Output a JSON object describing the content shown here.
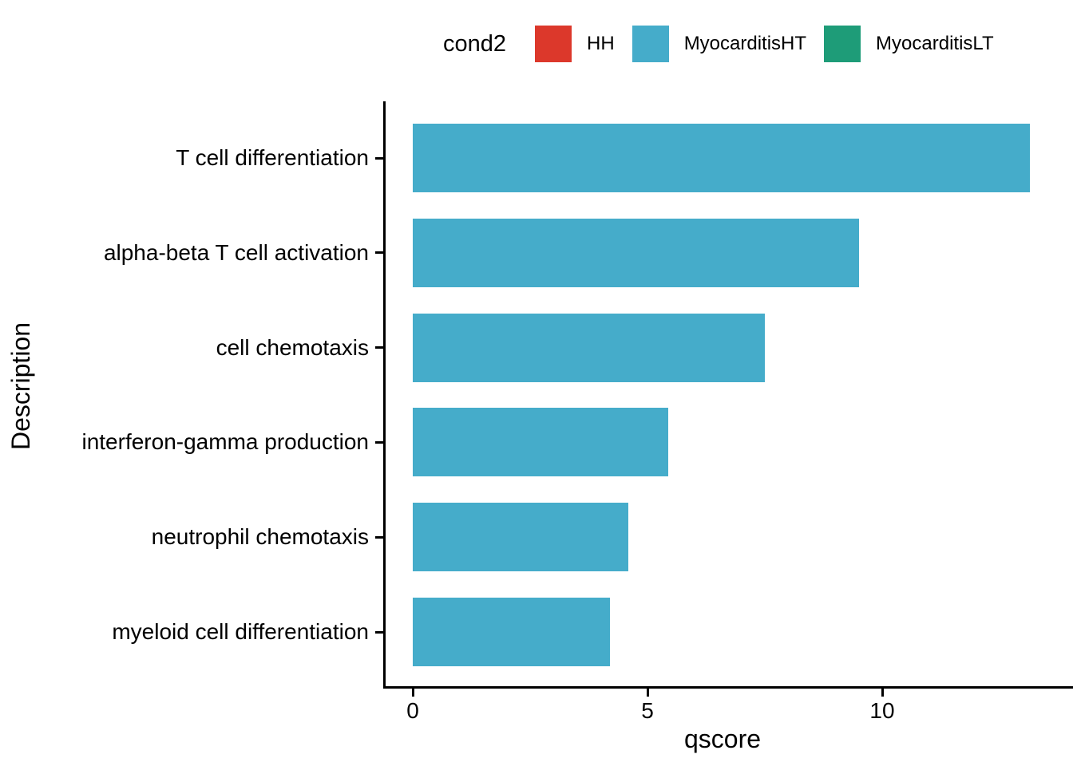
{
  "chart_data": {
    "type": "bar",
    "orientation": "horizontal",
    "title": "",
    "xlabel": "qscore",
    "ylabel": "Description",
    "categories": [
      "T cell differentiation",
      "alpha-beta T cell activation",
      "cell chemotaxis",
      "interferon-gamma production",
      "neutrophil chemotaxis",
      "myeloid cell differentiation"
    ],
    "values": [
      13.15,
      9.5,
      7.5,
      5.45,
      4.6,
      4.2
    ],
    "series_condition": "MyocarditisHT",
    "bar_color": "#45ACCA",
    "xlim": [
      0,
      14
    ],
    "xticks": [
      0,
      5,
      10
    ],
    "xtick_labels": [
      "0",
      "5",
      "10"
    ],
    "grid": false,
    "axis_color": "#000000",
    "text_color": "#000000",
    "legend": {
      "title": "cond2",
      "position": "top",
      "entries": [
        {
          "label": "HH",
          "color": "#DC382B"
        },
        {
          "label": "MyocarditisHT",
          "color": "#45ACCA"
        },
        {
          "label": "MyocarditisLT",
          "color": "#1E9C78"
        }
      ]
    }
  }
}
